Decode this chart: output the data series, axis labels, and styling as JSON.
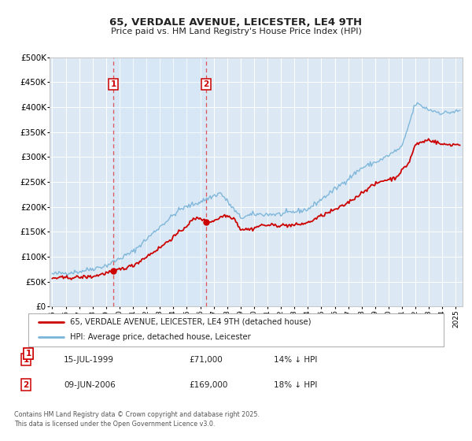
{
  "title": "65, VERDALE AVENUE, LEICESTER, LE4 9TH",
  "subtitle": "Price paid vs. HM Land Registry's House Price Index (HPI)",
  "background_color": "#ffffff",
  "plot_bg_color": "#dce9f5",
  "grid_color": "#ffffff",
  "hpi_color": "#7ab4d8",
  "price_color": "#cc0000",
  "marker1_date": 1999.54,
  "marker1_price": 71000,
  "marker1_label": "1",
  "marker2_date": 2006.44,
  "marker2_price": 169000,
  "marker2_label": "2",
  "ylim": [
    0,
    500000
  ],
  "xlim": [
    1994.8,
    2025.5
  ],
  "yticks": [
    0,
    50000,
    100000,
    150000,
    200000,
    250000,
    300000,
    350000,
    400000,
    450000,
    500000
  ],
  "ytick_labels": [
    "£0",
    "£50K",
    "£100K",
    "£150K",
    "£200K",
    "£250K",
    "£300K",
    "£350K",
    "£400K",
    "£450K",
    "£500K"
  ],
  "xticks": [
    1995,
    1996,
    1997,
    1998,
    1999,
    2000,
    2001,
    2002,
    2003,
    2004,
    2005,
    2006,
    2007,
    2008,
    2009,
    2010,
    2011,
    2012,
    2013,
    2014,
    2015,
    2016,
    2017,
    2018,
    2019,
    2020,
    2021,
    2022,
    2023,
    2024,
    2025
  ],
  "legend_line1": "65, VERDALE AVENUE, LEICESTER, LE4 9TH (detached house)",
  "legend_line2": "HPI: Average price, detached house, Leicester",
  "ann1_date": "15-JUL-1999",
  "ann1_price": "£71,000",
  "ann1_hpi": "14% ↓ HPI",
  "ann2_date": "09-JUN-2006",
  "ann2_price": "£169,000",
  "ann2_hpi": "18% ↓ HPI",
  "footer": "Contains HM Land Registry data © Crown copyright and database right 2025.\nThis data is licensed under the Open Government Licence v3.0."
}
